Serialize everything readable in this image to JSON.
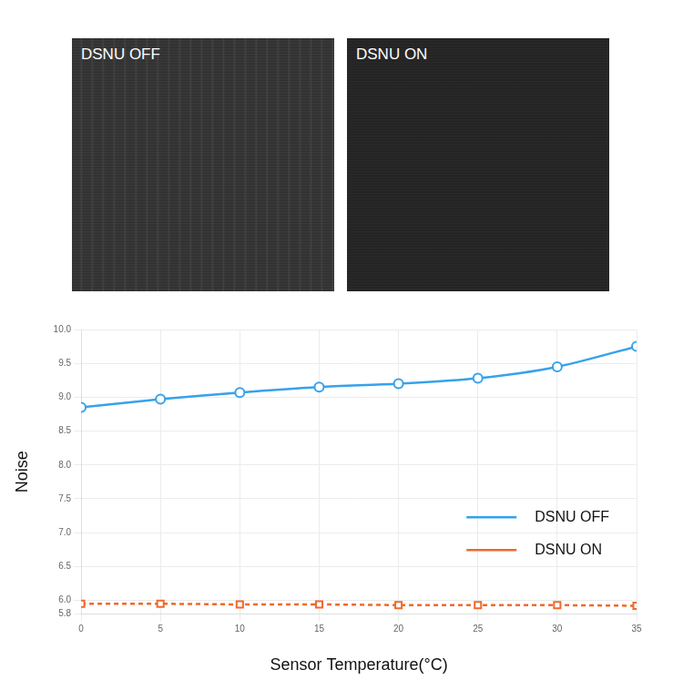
{
  "images": [
    {
      "label": "DSNU OFF"
    },
    {
      "label": "DSNU ON"
    }
  ],
  "chart_data": {
    "type": "line",
    "x_label": "Sensor Temperature(°C)",
    "y_label": "Noise",
    "x": [
      0,
      5,
      10,
      15,
      20,
      25,
      30,
      35
    ],
    "series": [
      {
        "name": "DSNU OFF",
        "color": "#36a2eb",
        "marker": "circle",
        "line_style": "solid",
        "values": [
          8.85,
          8.97,
          9.07,
          9.15,
          9.2,
          9.28,
          9.45,
          9.75
        ]
      },
      {
        "name": "DSNU ON",
        "color": "#f0692a",
        "marker": "square",
        "line_style": "dashed",
        "values": [
          5.95,
          5.95,
          5.94,
          5.94,
          5.93,
          5.93,
          5.93,
          5.92
        ]
      }
    ],
    "xlim": [
      0,
      35
    ],
    "xticks": [
      0,
      5,
      10,
      15,
      20,
      25,
      30,
      35
    ],
    "ylim": [
      5.8,
      10.0
    ],
    "yticks": [
      5.8,
      {
        "value": 6.0,
        "label": "6.0"
      },
      6.5,
      {
        "value": 7.0,
        "label": "7.0"
      },
      7.5,
      {
        "value": 8.0,
        "label": "8.0"
      },
      8.5,
      {
        "value": 9.0,
        "label": "9.0"
      },
      9.5,
      {
        "value": 10.0,
        "label": "10.0"
      }
    ],
    "grid": true,
    "legend": "lower right"
  }
}
